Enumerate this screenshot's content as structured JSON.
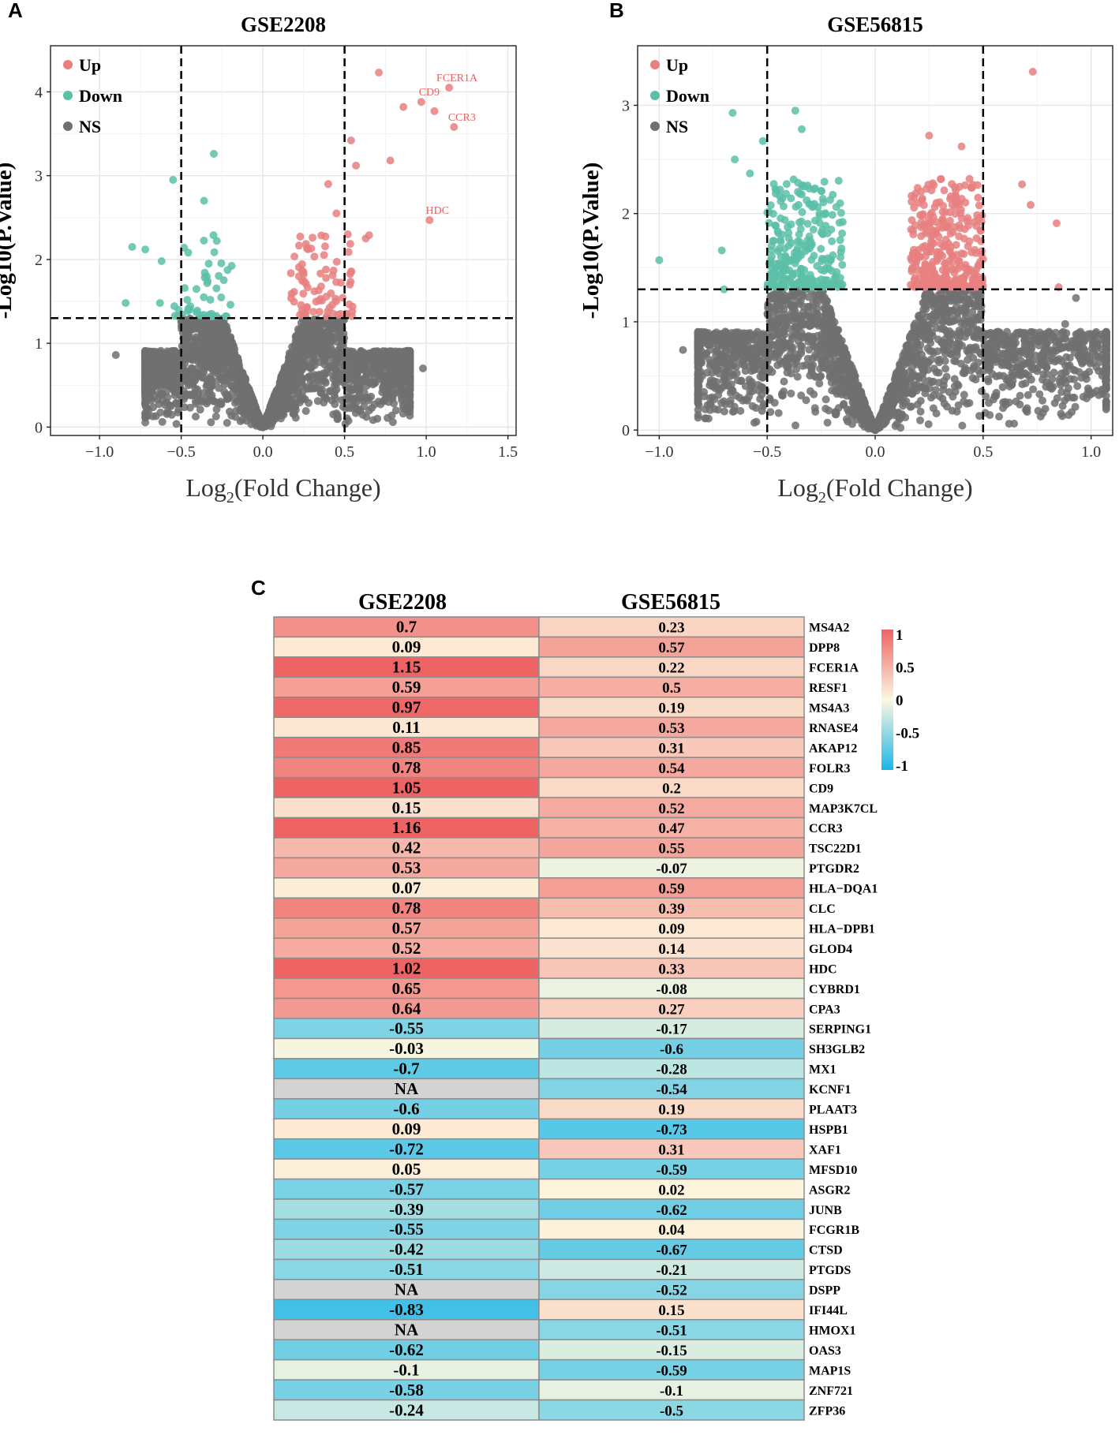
{
  "panels": {
    "a": "A",
    "b": "B",
    "c": "C"
  },
  "colors": {
    "up": "#e88080",
    "down": "#5cc0a8",
    "ns": "#707070",
    "heat_high": "#ee6464",
    "heat_mid": "#fdf7e0",
    "heat_low": "#1ab6e8",
    "heat_na": "#d3d3d3"
  },
  "chart_data": [
    {
      "type": "scatter",
      "title": "GSE2208",
      "xlabel": "Log2(Fold Change)",
      "ylabel": "-Log10(P.Value)",
      "xlim": [
        -1.3,
        1.55
      ],
      "ylim": [
        -0.1,
        4.55
      ],
      "xticks": [
        -1.0,
        -0.5,
        0.0,
        0.5,
        1.0,
        1.5
      ],
      "xtick_labels": [
        "−1.0",
        "−0.5",
        "0.0",
        "0.5",
        "1.0",
        "1.5"
      ],
      "yticks": [
        0,
        1,
        2,
        3,
        4
      ],
      "threshold_x": [
        -0.5,
        0.5
      ],
      "threshold_y": 1.3,
      "legend": [
        "Up",
        "Down",
        "NS"
      ],
      "ns_cloud": {
        "x_range": [
          -0.72,
          0.9
        ],
        "max_y": 1.3
      },
      "highlight_points": [
        {
          "x": 0.71,
          "y": 4.23,
          "group": "Up"
        },
        {
          "x": 1.14,
          "y": 4.05,
          "group": "Up",
          "label": "FCER1A"
        },
        {
          "x": 0.97,
          "y": 3.88,
          "group": "Up",
          "label": "CD9"
        },
        {
          "x": 0.86,
          "y": 3.82,
          "group": "Up"
        },
        {
          "x": 1.05,
          "y": 3.77,
          "group": "Up"
        },
        {
          "x": 1.17,
          "y": 3.58,
          "group": "Up",
          "label": "CCR3"
        },
        {
          "x": 0.54,
          "y": 3.42,
          "group": "Up"
        },
        {
          "x": 0.78,
          "y": 3.18,
          "group": "Up"
        },
        {
          "x": 0.57,
          "y": 3.12,
          "group": "Up"
        },
        {
          "x": 1.02,
          "y": 2.47,
          "group": "Up",
          "label": "HDC"
        },
        {
          "x": 0.65,
          "y": 2.29,
          "group": "Up"
        },
        {
          "x": 0.63,
          "y": 2.25,
          "group": "Up"
        },
        {
          "x": 0.4,
          "y": 2.9,
          "group": "Up"
        },
        {
          "x": 0.45,
          "y": 2.55,
          "group": "Up"
        },
        {
          "x": 0.52,
          "y": 2.3,
          "group": "Up"
        },
        {
          "x": -0.3,
          "y": 3.26,
          "group": "Down"
        },
        {
          "x": -0.55,
          "y": 2.95,
          "group": "Down"
        },
        {
          "x": -0.36,
          "y": 2.7,
          "group": "Down"
        },
        {
          "x": -0.8,
          "y": 2.15,
          "group": "Down"
        },
        {
          "x": -0.72,
          "y": 2.12,
          "group": "Down"
        },
        {
          "x": -0.62,
          "y": 1.98,
          "group": "Down"
        },
        {
          "x": -0.84,
          "y": 1.48,
          "group": "Down"
        },
        {
          "x": -0.63,
          "y": 1.48,
          "group": "Down"
        },
        {
          "x": -0.9,
          "y": 0.86,
          "group": "NS"
        },
        {
          "x": 0.98,
          "y": 0.7,
          "group": "NS"
        }
      ]
    },
    {
      "type": "scatter",
      "title": "GSE56815",
      "xlabel": "Log2(Fold Change)",
      "ylabel": "-Log10(P.Value)",
      "xlim": [
        -1.1,
        1.1
      ],
      "ylim": [
        -0.05,
        3.55
      ],
      "xticks": [
        -1.0,
        -0.5,
        0.0,
        0.5,
        1.0
      ],
      "xtick_labels": [
        "−1.0",
        "−0.5",
        "0.0",
        "0.5",
        "1.0"
      ],
      "yticks": [
        0,
        1,
        2,
        3
      ],
      "threshold_x": [
        -0.5,
        0.5
      ],
      "threshold_y": 1.3,
      "legend": [
        "Up",
        "Down",
        "NS"
      ],
      "ns_cloud": {
        "x_range": [
          -0.82,
          1.07
        ],
        "max_y": 1.3
      },
      "highlight_points": [
        {
          "x": 0.73,
          "y": 3.31,
          "group": "Up"
        },
        {
          "x": 0.68,
          "y": 2.27,
          "group": "Up"
        },
        {
          "x": 0.72,
          "y": 2.08,
          "group": "Up"
        },
        {
          "x": 0.84,
          "y": 1.91,
          "group": "Up"
        },
        {
          "x": 0.85,
          "y": 1.32,
          "group": "Up"
        },
        {
          "x": 0.25,
          "y": 2.72,
          "group": "Up"
        },
        {
          "x": 0.4,
          "y": 2.62,
          "group": "Up"
        },
        {
          "x": -0.37,
          "y": 2.95,
          "group": "Down"
        },
        {
          "x": -0.66,
          "y": 2.93,
          "group": "Down"
        },
        {
          "x": -0.34,
          "y": 2.78,
          "group": "Down"
        },
        {
          "x": -0.52,
          "y": 2.67,
          "group": "Down"
        },
        {
          "x": -0.65,
          "y": 2.5,
          "group": "Down"
        },
        {
          "x": -0.58,
          "y": 2.37,
          "group": "Down"
        },
        {
          "x": -1.0,
          "y": 1.57,
          "group": "Down"
        },
        {
          "x": -0.71,
          "y": 1.66,
          "group": "Down"
        },
        {
          "x": -0.7,
          "y": 1.3,
          "group": "Down"
        },
        {
          "x": -0.89,
          "y": 0.74,
          "group": "NS"
        },
        {
          "x": 0.88,
          "y": 0.98,
          "group": "NS"
        },
        {
          "x": 0.93,
          "y": 1.22,
          "group": "NS"
        }
      ]
    },
    {
      "type": "heatmap",
      "columns": [
        "GSE2208",
        "GSE56815"
      ],
      "scale_ticks": [
        "1",
        "0.5",
        "0",
        "-0.5",
        "-1"
      ],
      "range": [
        -1,
        1
      ],
      "rows": [
        {
          "gene": "MS4A2",
          "values": [
            "0.7",
            "0.23"
          ]
        },
        {
          "gene": "DPP8",
          "values": [
            "0.09",
            "0.57"
          ]
        },
        {
          "gene": "FCER1A",
          "values": [
            "1.15",
            "0.22"
          ]
        },
        {
          "gene": "RESF1",
          "values": [
            "0.59",
            "0.5"
          ]
        },
        {
          "gene": "MS4A3",
          "values": [
            "0.97",
            "0.19"
          ]
        },
        {
          "gene": "RNASE4",
          "values": [
            "0.11",
            "0.53"
          ]
        },
        {
          "gene": "AKAP12",
          "values": [
            "0.85",
            "0.31"
          ]
        },
        {
          "gene": "FOLR3",
          "values": [
            "0.78",
            "0.54"
          ]
        },
        {
          "gene": "CD9",
          "values": [
            "1.05",
            "0.2"
          ]
        },
        {
          "gene": "MAP3K7CL",
          "values": [
            "0.15",
            "0.52"
          ]
        },
        {
          "gene": "CCR3",
          "values": [
            "1.16",
            "0.47"
          ]
        },
        {
          "gene": "TSC22D1",
          "values": [
            "0.42",
            "0.55"
          ]
        },
        {
          "gene": "PTGDR2",
          "values": [
            "0.53",
            "-0.07"
          ]
        },
        {
          "gene": "HLA−DQA1",
          "values": [
            "0.07",
            "0.59"
          ]
        },
        {
          "gene": "CLC",
          "values": [
            "0.78",
            "0.39"
          ]
        },
        {
          "gene": "HLA−DPB1",
          "values": [
            "0.57",
            "0.09"
          ]
        },
        {
          "gene": "GLOD4",
          "values": [
            "0.52",
            "0.14"
          ]
        },
        {
          "gene": "HDC",
          "values": [
            "1.02",
            "0.33"
          ]
        },
        {
          "gene": "CYBRD1",
          "values": [
            "0.65",
            "-0.08"
          ]
        },
        {
          "gene": "CPA3",
          "values": [
            "0.64",
            "0.27"
          ]
        },
        {
          "gene": "SERPING1",
          "values": [
            "-0.55",
            "-0.17"
          ]
        },
        {
          "gene": "SH3GLB2",
          "values": [
            "-0.03",
            "-0.6"
          ]
        },
        {
          "gene": "MX1",
          "values": [
            "-0.7",
            "-0.28"
          ]
        },
        {
          "gene": "KCNF1",
          "values": [
            "NA",
            "-0.54"
          ]
        },
        {
          "gene": "PLAAT3",
          "values": [
            "-0.6",
            "0.19"
          ]
        },
        {
          "gene": "HSPB1",
          "values": [
            "0.09",
            "-0.73"
          ]
        },
        {
          "gene": "XAF1",
          "values": [
            "-0.72",
            "0.31"
          ]
        },
        {
          "gene": "MFSD10",
          "values": [
            "0.05",
            "-0.59"
          ]
        },
        {
          "gene": "ASGR2",
          "values": [
            "-0.57",
            "0.02"
          ]
        },
        {
          "gene": "JUNB",
          "values": [
            "-0.39",
            "-0.62"
          ]
        },
        {
          "gene": "FCGR1B",
          "values": [
            "-0.55",
            "0.04"
          ]
        },
        {
          "gene": "CTSD",
          "values": [
            "-0.42",
            "-0.67"
          ]
        },
        {
          "gene": "PTGDS",
          "values": [
            "-0.51",
            "-0.21"
          ]
        },
        {
          "gene": "DSPP",
          "values": [
            "NA",
            "-0.52"
          ]
        },
        {
          "gene": "IFI44L",
          "values": [
            "-0.83",
            "0.15"
          ]
        },
        {
          "gene": "HMOX1",
          "values": [
            "NA",
            "-0.51"
          ]
        },
        {
          "gene": "OAS3",
          "values": [
            "-0.62",
            "-0.15"
          ]
        },
        {
          "gene": "MAP1S",
          "values": [
            "-0.1",
            "-0.59"
          ]
        },
        {
          "gene": "ZNF721",
          "values": [
            "-0.58",
            "-0.1"
          ]
        },
        {
          "gene": "ZFP36",
          "values": [
            "-0.24",
            "-0.5"
          ]
        }
      ]
    }
  ]
}
